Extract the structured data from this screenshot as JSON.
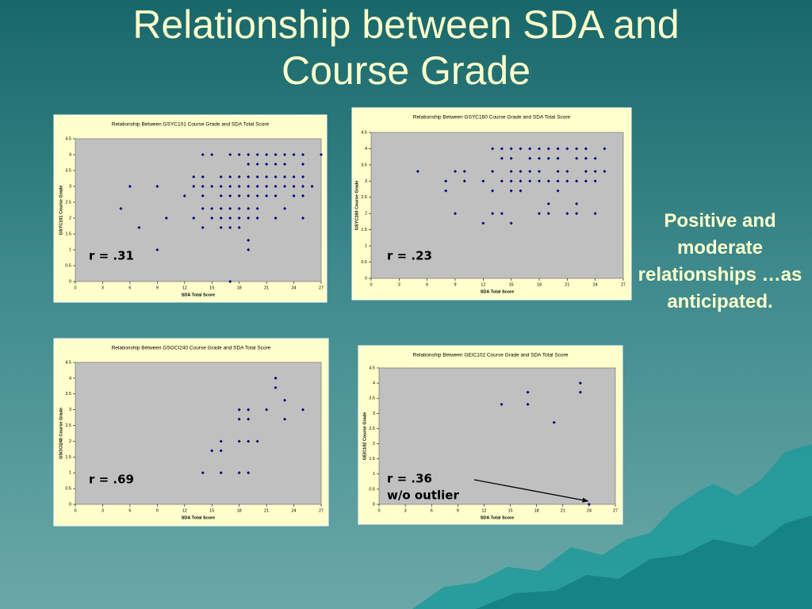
{
  "title": "Relationship between SDA and Course Grade",
  "side_text": "Positive and moderate relationships …as anticipated.",
  "chart_data": [
    {
      "type": "scatter",
      "title": "Relationship Between GSYC101 Course Grade and SDA Total Score",
      "x_label": "SDA Total Score",
      "y_label": "GSYC101 Course Grade",
      "annotation": "r = .31",
      "color": "#000080",
      "xlim": [
        0,
        27
      ],
      "xticks": [
        0,
        3,
        6,
        9,
        12,
        15,
        18,
        21,
        24,
        27
      ],
      "ylim": [
        0,
        4.5
      ],
      "yticks": [
        0,
        0.5,
        1,
        1.5,
        2,
        2.5,
        3,
        3.5,
        4,
        4.5
      ],
      "x": [
        5,
        6,
        7,
        9,
        9,
        10,
        12,
        13,
        13,
        13,
        14,
        14,
        14,
        14,
        14,
        14,
        15,
        15,
        15,
        15,
        16,
        16,
        16,
        16,
        16,
        16,
        17,
        17,
        17,
        17,
        17,
        17,
        17,
        17,
        18,
        18,
        18,
        18,
        18,
        18,
        18,
        19,
        19,
        19,
        19,
        19,
        19,
        19,
        19,
        19,
        20,
        20,
        20,
        20,
        20,
        20,
        20,
        21,
        21,
        21,
        21,
        21,
        22,
        22,
        22,
        22,
        22,
        22,
        23,
        23,
        23,
        23,
        23,
        24,
        24,
        24,
        24,
        25,
        25,
        25,
        25,
        25,
        25,
        26,
        27
      ],
      "values": [
        2.3,
        3,
        1.7,
        3,
        1,
        2,
        2.7,
        3.3,
        3,
        2,
        4,
        3.3,
        3,
        2.7,
        2.3,
        1.7,
        4,
        3,
        2.3,
        2,
        3.3,
        3,
        2.7,
        2.3,
        2,
        1.7,
        4,
        3.3,
        3,
        2.7,
        2.3,
        2,
        1.7,
        0,
        4,
        3.3,
        3,
        2.7,
        2.3,
        2,
        1.7,
        4,
        3.7,
        3.3,
        3,
        2.7,
        2.3,
        2,
        1.3,
        1,
        4,
        3.7,
        3.3,
        3,
        2.7,
        2.3,
        2,
        4,
        3.7,
        3.3,
        3,
        2.7,
        4,
        3.7,
        3.3,
        3,
        2.7,
        2,
        4,
        3.7,
        3.3,
        3,
        2.3,
        4,
        3.3,
        3,
        2.7,
        4,
        3.7,
        3.3,
        3,
        2.7,
        2,
        3,
        4
      ]
    },
    {
      "type": "scatter",
      "title": "Relationship Between GSYC160 Course Grade and SDA Total Score",
      "x_label": "SDA Total Score",
      "y_label": "GSYC160 Course Grade",
      "annotation": "r = .23",
      "color": "#000080",
      "xlim": [
        0,
        27
      ],
      "xticks": [
        0,
        3,
        6,
        9,
        12,
        15,
        18,
        21,
        24,
        27
      ],
      "ylim": [
        0,
        4.5
      ],
      "yticks": [
        0,
        0.5,
        1,
        1.5,
        2,
        2.5,
        3,
        3.5,
        4,
        4.5
      ],
      "x": [
        5,
        8,
        8,
        9,
        9,
        10,
        10,
        12,
        12,
        13,
        13,
        13,
        13,
        14,
        14,
        14,
        14,
        15,
        15,
        15,
        15,
        15,
        15,
        16,
        16,
        16,
        16,
        17,
        17,
        17,
        17,
        18,
        18,
        18,
        18,
        18,
        19,
        19,
        19,
        19,
        19,
        20,
        20,
        20,
        20,
        20,
        21,
        21,
        21,
        21,
        22,
        22,
        22,
        22,
        22,
        23,
        23,
        23,
        23,
        24,
        24,
        24,
        24,
        25,
        25
      ],
      "values": [
        3.3,
        3,
        2.7,
        3.3,
        2,
        3.3,
        3,
        3,
        1.7,
        4,
        3.3,
        2.7,
        2,
        4,
        3.7,
        3,
        2,
        4,
        3.7,
        3.3,
        3,
        2.7,
        1.7,
        4,
        3.3,
        3,
        2.7,
        4,
        3.7,
        3.3,
        3,
        4,
        3.7,
        3.3,
        3,
        2,
        4,
        3.7,
        3,
        2.3,
        2,
        4,
        3.7,
        3.3,
        3,
        2.7,
        4,
        3.3,
        3,
        2,
        4,
        3.7,
        3,
        2.3,
        2,
        4,
        3.7,
        3.3,
        3,
        3.7,
        3.3,
        3,
        2,
        4,
        3.3
      ]
    },
    {
      "type": "scatter",
      "title": "Relationship Between GSOCI240 Course Grade and SDA Total Score",
      "x_label": "SDA Total Score",
      "y_label": "GSOCI240 Course Grade",
      "annotation": "r = .69",
      "color": "#000080",
      "xlim": [
        0,
        27
      ],
      "xticks": [
        0,
        3,
        6,
        9,
        12,
        15,
        18,
        21,
        24,
        27
      ],
      "ylim": [
        0,
        4.5
      ],
      "yticks": [
        0,
        0.5,
        1,
        1.5,
        2,
        2.5,
        3,
        3.5,
        4,
        4.5
      ],
      "x": [
        14,
        15,
        16,
        16,
        16,
        18,
        18,
        18,
        18,
        19,
        19,
        19,
        19,
        20,
        21,
        22,
        22,
        23,
        23,
        25
      ],
      "values": [
        1,
        1.7,
        2,
        1.7,
        1,
        3,
        2.7,
        2,
        1,
        3,
        2.7,
        2,
        1,
        2,
        3,
        4,
        3.7,
        3.3,
        2.7,
        3
      ]
    },
    {
      "type": "scatter",
      "title": "Relationship Between GEIC102 Course Grade and SDA Total Score",
      "x_label": "SDA Total Score",
      "y_label": "GEIC102 Course Grade",
      "annotation": "r = .36",
      "note": "w/o outlier",
      "color": "#000080",
      "xlim": [
        0,
        27
      ],
      "xticks": [
        0,
        3,
        6,
        9,
        12,
        15,
        18,
        21,
        24,
        27
      ],
      "ylim": [
        0,
        4.5
      ],
      "yticks": [
        0,
        0.5,
        1,
        1.5,
        2,
        2.5,
        3,
        3.5,
        4,
        4.5
      ],
      "x": [
        14,
        17,
        17,
        20,
        23,
        23,
        24
      ],
      "values": [
        3.3,
        3.7,
        3.3,
        2.7,
        4,
        3.7,
        0
      ]
    }
  ]
}
